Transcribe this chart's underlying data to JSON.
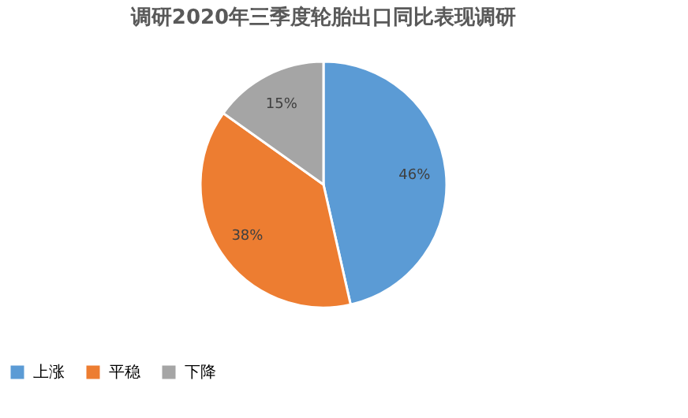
{
  "chart_data": {
    "type": "pie",
    "title": "调研2020年三季度轮胎出口同比表现调研",
    "categories": [
      "上涨",
      "平稳",
      "下降"
    ],
    "values": [
      46,
      38,
      15
    ],
    "colors": [
      "#5b9bd5",
      "#ed7d31",
      "#a5a5a5"
    ],
    "value_labels": [
      "46%",
      "38%",
      "15%"
    ],
    "legend": "bottom"
  }
}
